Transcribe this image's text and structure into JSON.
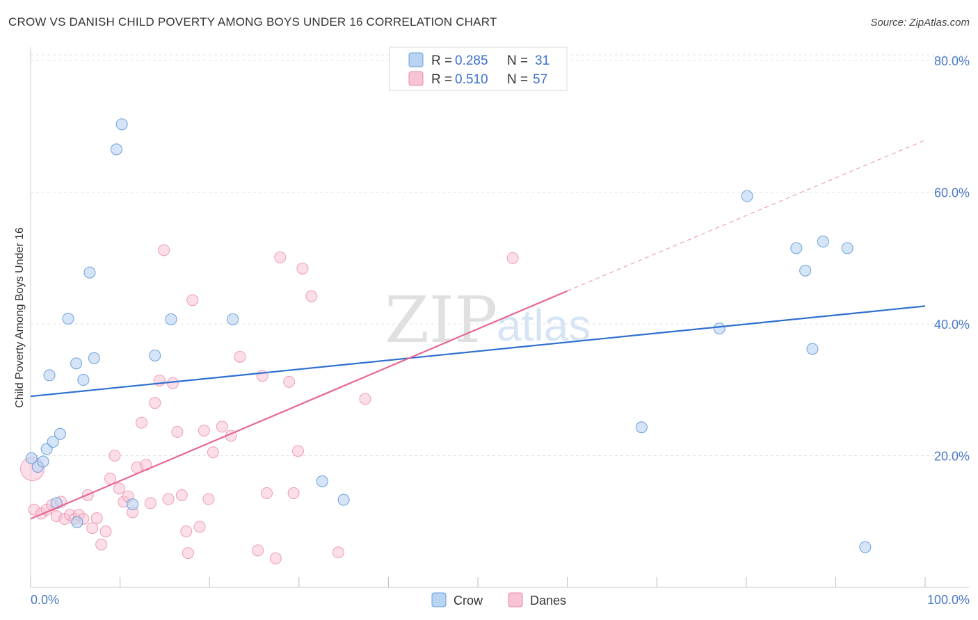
{
  "title": "CROW VS DANISH CHILD POVERTY AMONG BOYS UNDER 16 CORRELATION CHART",
  "source": "Source: ZipAtlas.com",
  "watermark": {
    "zip": "ZIP",
    "atlas": "atlas"
  },
  "colors": {
    "crow_fill": "#b9d3f2",
    "crow_stroke": "#6b9fdc",
    "crow_line": "#2f6fcf",
    "danes_fill": "#f8c3d3",
    "danes_stroke": "#e88aa8",
    "danes_line": "#e86790"
  },
  "legend": {
    "rows": [
      {
        "series": "Crow",
        "r_label": "R =",
        "r_value": "0.285",
        "n_label": "N =",
        "n_value": "31"
      },
      {
        "series": "Danes",
        "r_label": "R =",
        "r_value": "0.510",
        "n_label": "N =",
        "n_value": "57"
      }
    ]
  },
  "bottom_legend": [
    "Crow",
    "Danes"
  ],
  "chart_data": {
    "type": "scatter",
    "title": "CROW VS DANISH CHILD POVERTY AMONG BOYS UNDER 16 CORRELATION CHART",
    "xlabel": "",
    "ylabel": "Child Poverty Among Boys Under 16",
    "xlim": [
      0,
      100
    ],
    "ylim": [
      0,
      82
    ],
    "x_tick_labels": [
      "0.0%",
      "100.0%"
    ],
    "y_ticks": [
      20,
      40,
      60,
      80
    ],
    "y_tick_labels": [
      "20.0%",
      "40.0%",
      "60.0%",
      "80.0%"
    ],
    "series": [
      {
        "name": "Crow",
        "points": [
          [
            0.1,
            19.6
          ],
          [
            0.8,
            18.3
          ],
          [
            1.4,
            19.1
          ],
          [
            1.8,
            21.0
          ],
          [
            2.1,
            32.2
          ],
          [
            2.5,
            22.1
          ],
          [
            2.9,
            12.8
          ],
          [
            3.3,
            23.3
          ],
          [
            4.2,
            40.8
          ],
          [
            5.1,
            34.0
          ],
          [
            5.2,
            9.9
          ],
          [
            5.9,
            31.5
          ],
          [
            6.6,
            47.8
          ],
          [
            7.1,
            34.8
          ],
          [
            9.6,
            66.5
          ],
          [
            10.2,
            70.3
          ],
          [
            11.4,
            12.6
          ],
          [
            13.9,
            35.2
          ],
          [
            15.7,
            40.7
          ],
          [
            22.6,
            40.7
          ],
          [
            32.6,
            16.1
          ],
          [
            35.0,
            13.3
          ],
          [
            68.3,
            24.3
          ],
          [
            77.0,
            39.3
          ],
          [
            80.1,
            59.4
          ],
          [
            85.6,
            51.5
          ],
          [
            86.6,
            48.1
          ],
          [
            87.4,
            36.2
          ],
          [
            88.6,
            52.5
          ],
          [
            91.3,
            51.5
          ],
          [
            93.3,
            6.1
          ]
        ],
        "trend": {
          "x1": 0,
          "y1": 29.0,
          "x2": 100,
          "y2": 42.7
        }
      },
      {
        "name": "Danes",
        "points": [
          [
            0.2,
            18.0
          ],
          [
            0.4,
            11.8
          ],
          [
            1.2,
            11.2
          ],
          [
            1.8,
            11.8
          ],
          [
            2.4,
            12.5
          ],
          [
            2.9,
            10.8
          ],
          [
            3.4,
            13.0
          ],
          [
            3.8,
            10.4
          ],
          [
            4.4,
            11.0
          ],
          [
            4.9,
            10.4
          ],
          [
            5.4,
            11.0
          ],
          [
            5.9,
            10.4
          ],
          [
            6.4,
            14.0
          ],
          [
            6.9,
            9.0
          ],
          [
            7.4,
            10.5
          ],
          [
            7.9,
            6.5
          ],
          [
            8.4,
            8.5
          ],
          [
            8.9,
            16.5
          ],
          [
            9.4,
            20.0
          ],
          [
            9.9,
            15.0
          ],
          [
            10.4,
            13.0
          ],
          [
            10.9,
            13.8
          ],
          [
            11.4,
            11.4
          ],
          [
            11.9,
            18.2
          ],
          [
            12.4,
            25.0
          ],
          [
            12.9,
            18.6
          ],
          [
            13.4,
            12.8
          ],
          [
            13.9,
            28.0
          ],
          [
            14.4,
            31.4
          ],
          [
            14.9,
            51.2
          ],
          [
            15.4,
            13.4
          ],
          [
            15.9,
            31.0
          ],
          [
            16.4,
            23.6
          ],
          [
            16.9,
            14.0
          ],
          [
            17.4,
            8.5
          ],
          [
            17.6,
            5.2
          ],
          [
            18.1,
            43.6
          ],
          [
            18.9,
            9.2
          ],
          [
            19.4,
            23.8
          ],
          [
            19.9,
            13.4
          ],
          [
            20.4,
            20.5
          ],
          [
            21.4,
            24.4
          ],
          [
            22.4,
            23.0
          ],
          [
            23.4,
            35.0
          ],
          [
            25.4,
            5.6
          ],
          [
            25.9,
            32.1
          ],
          [
            26.4,
            14.3
          ],
          [
            27.4,
            4.4
          ],
          [
            27.9,
            50.1
          ],
          [
            28.9,
            31.2
          ],
          [
            29.4,
            14.3
          ],
          [
            29.9,
            20.7
          ],
          [
            30.4,
            48.4
          ],
          [
            31.4,
            44.2
          ],
          [
            34.4,
            5.3
          ],
          [
            37.4,
            28.6
          ],
          [
            53.9,
            50.0
          ]
        ],
        "trend": {
          "x1": 0,
          "y1": 10.4,
          "x2": 60,
          "y2": 45.0
        },
        "trend_extension": {
          "x1": 60,
          "y1": 45.0,
          "x2": 100,
          "y2": 67.9
        }
      }
    ]
  }
}
